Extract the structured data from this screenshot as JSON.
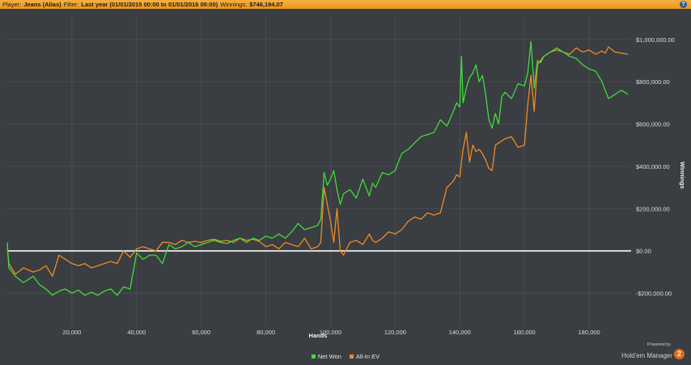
{
  "header": {
    "player_label": "Player:",
    "player_value": "Jeans (Alias)",
    "filter_label": "Filter:",
    "filter_value": "Last year (01/01/2015 00:00 to 01/01/2016 00:00)",
    "winnings_label": "Winnings:",
    "winnings_value": "$746,194.07",
    "help_icon": "?"
  },
  "colors": {
    "background": "#3a3d42",
    "grid": "#4f5358",
    "zero_line": "#ffffff",
    "net_won": "#3fdc3a",
    "all_in_ev": "#f08a24",
    "header": "#f0a030"
  },
  "chart_data": {
    "type": "line",
    "xlabel": "Hands",
    "ylabel": "Winnings",
    "xlim": [
      0,
      193000
    ],
    "ylim": [
      -360000,
      1110000
    ],
    "x_ticks": [
      20000,
      40000,
      60000,
      80000,
      100000,
      120000,
      140000,
      160000,
      180000
    ],
    "x_tick_labels": [
      "20,000",
      "40,000",
      "60,000",
      "80,000",
      "100,000",
      "120,000",
      "140,000",
      "160,000",
      "180,000"
    ],
    "y_ticks": [
      -200000,
      0,
      200000,
      400000,
      600000,
      800000,
      1000000
    ],
    "y_tick_labels": [
      "-$200,000.00",
      "$0.00",
      "$200,000.00",
      "$400,000.00",
      "$600,000.00",
      "$800,000.00",
      "$1,000,000.00"
    ],
    "grid": true,
    "legend_position": "bottom-center",
    "series": [
      {
        "name": "Net Won",
        "x": [
          0,
          500,
          2500,
          5000,
          8000,
          10000,
          12000,
          14000,
          16000,
          18000,
          20000,
          22000,
          24000,
          26000,
          28000,
          30000,
          32000,
          34000,
          36000,
          38000,
          40000,
          42000,
          44000,
          46000,
          48000,
          50000,
          52000,
          54000,
          56000,
          58000,
          60000,
          62000,
          64000,
          66000,
          68000,
          70000,
          72000,
          74000,
          76000,
          78000,
          80000,
          82000,
          84000,
          86000,
          88000,
          90000,
          92000,
          94000,
          96000,
          97000,
          98000,
          99000,
          100000,
          101000,
          102000,
          103000,
          104000,
          106000,
          108000,
          110000,
          112000,
          113000,
          114000,
          116000,
          118000,
          120000,
          122000,
          124000,
          126000,
          128000,
          130000,
          132000,
          134000,
          136000,
          138000,
          139000,
          140000,
          140500,
          141000,
          142000,
          143000,
          144000,
          145000,
          146000,
          147000,
          148000,
          149000,
          150000,
          151000,
          152000,
          153000,
          154000,
          156000,
          158000,
          160000,
          161000,
          162000,
          163000,
          164000,
          165000,
          166000,
          168000,
          170000,
          172000,
          174000,
          176000,
          178000,
          180000,
          182000,
          184000,
          185000,
          186000,
          188000,
          190000,
          192000
        ],
        "y": [
          40000,
          -80000,
          -120000,
          -150000,
          -120000,
          -160000,
          -180000,
          -210000,
          -190000,
          -180000,
          -200000,
          -185000,
          -210000,
          -195000,
          -210000,
          -190000,
          -180000,
          -210000,
          -170000,
          -180000,
          -10000,
          -40000,
          -20000,
          -20000,
          -60000,
          30000,
          10000,
          20000,
          40000,
          20000,
          30000,
          40000,
          50000,
          40000,
          35000,
          50000,
          60000,
          40000,
          60000,
          50000,
          70000,
          60000,
          80000,
          60000,
          90000,
          130000,
          100000,
          110000,
          120000,
          150000,
          370000,
          310000,
          340000,
          380000,
          290000,
          220000,
          270000,
          290000,
          250000,
          340000,
          260000,
          320000,
          300000,
          370000,
          360000,
          380000,
          460000,
          480000,
          510000,
          540000,
          550000,
          560000,
          620000,
          590000,
          660000,
          700000,
          680000,
          920000,
          700000,
          770000,
          820000,
          840000,
          880000,
          800000,
          830000,
          740000,
          620000,
          580000,
          650000,
          600000,
          730000,
          750000,
          720000,
          790000,
          780000,
          840000,
          990000,
          770000,
          900000,
          890000,
          920000,
          940000,
          960000,
          940000,
          920000,
          910000,
          880000,
          860000,
          850000,
          800000,
          760000,
          720000,
          740000,
          760000,
          740000
        ]
      },
      {
        "name": "All-In EV",
        "x": [
          0,
          500,
          2500,
          5000,
          8000,
          10000,
          12000,
          14000,
          16000,
          18000,
          20000,
          22000,
          24000,
          26000,
          28000,
          30000,
          32000,
          34000,
          36000,
          38000,
          40000,
          42000,
          44000,
          46000,
          48000,
          50000,
          52000,
          54000,
          56000,
          58000,
          60000,
          62000,
          64000,
          66000,
          68000,
          70000,
          72000,
          74000,
          76000,
          78000,
          80000,
          82000,
          84000,
          86000,
          88000,
          90000,
          92000,
          94000,
          96000,
          97000,
          98000,
          99000,
          100000,
          101000,
          102000,
          103000,
          104000,
          106000,
          108000,
          110000,
          112000,
          113000,
          114000,
          116000,
          118000,
          120000,
          122000,
          124000,
          126000,
          128000,
          130000,
          132000,
          134000,
          136000,
          138000,
          139000,
          140000,
          140500,
          141000,
          142000,
          143000,
          144000,
          145000,
          146000,
          147000,
          148000,
          149000,
          150000,
          151000,
          152000,
          153000,
          154000,
          156000,
          158000,
          160000,
          161000,
          162000,
          163000,
          164000,
          165000,
          166000,
          168000,
          170000,
          172000,
          174000,
          176000,
          178000,
          180000,
          182000,
          184000,
          185000,
          186000,
          188000,
          190000,
          192000
        ],
        "y": [
          10000,
          -60000,
          -110000,
          -80000,
          -100000,
          -90000,
          -70000,
          -120000,
          -20000,
          -40000,
          -60000,
          -70000,
          -60000,
          -80000,
          -70000,
          -60000,
          -50000,
          -60000,
          0,
          -30000,
          10000,
          20000,
          10000,
          0,
          40000,
          40000,
          30000,
          50000,
          40000,
          45000,
          40000,
          50000,
          55000,
          45000,
          50000,
          40000,
          60000,
          50000,
          55000,
          45000,
          20000,
          30000,
          10000,
          40000,
          30000,
          20000,
          60000,
          10000,
          20000,
          40000,
          300000,
          220000,
          140000,
          40000,
          200000,
          0,
          -20000,
          40000,
          50000,
          30000,
          80000,
          50000,
          40000,
          60000,
          90000,
          80000,
          100000,
          140000,
          160000,
          150000,
          180000,
          170000,
          180000,
          300000,
          330000,
          360000,
          350000,
          420000,
          480000,
          560000,
          420000,
          500000,
          470000,
          480000,
          460000,
          430000,
          390000,
          380000,
          500000,
          510000,
          520000,
          530000,
          540000,
          490000,
          500000,
          690000,
          830000,
          660000,
          880000,
          900000,
          920000,
          940000,
          950000,
          940000,
          930000,
          960000,
          940000,
          950000,
          930000,
          945000,
          935000,
          965000,
          940000,
          935000,
          930000
        ]
      }
    ]
  },
  "legend": {
    "net_won": "Net Won",
    "all_in_ev": "All-In EV"
  },
  "branding": {
    "powered_by": "Powered by",
    "product": "Hold'em Manager",
    "logo_text": "2"
  }
}
